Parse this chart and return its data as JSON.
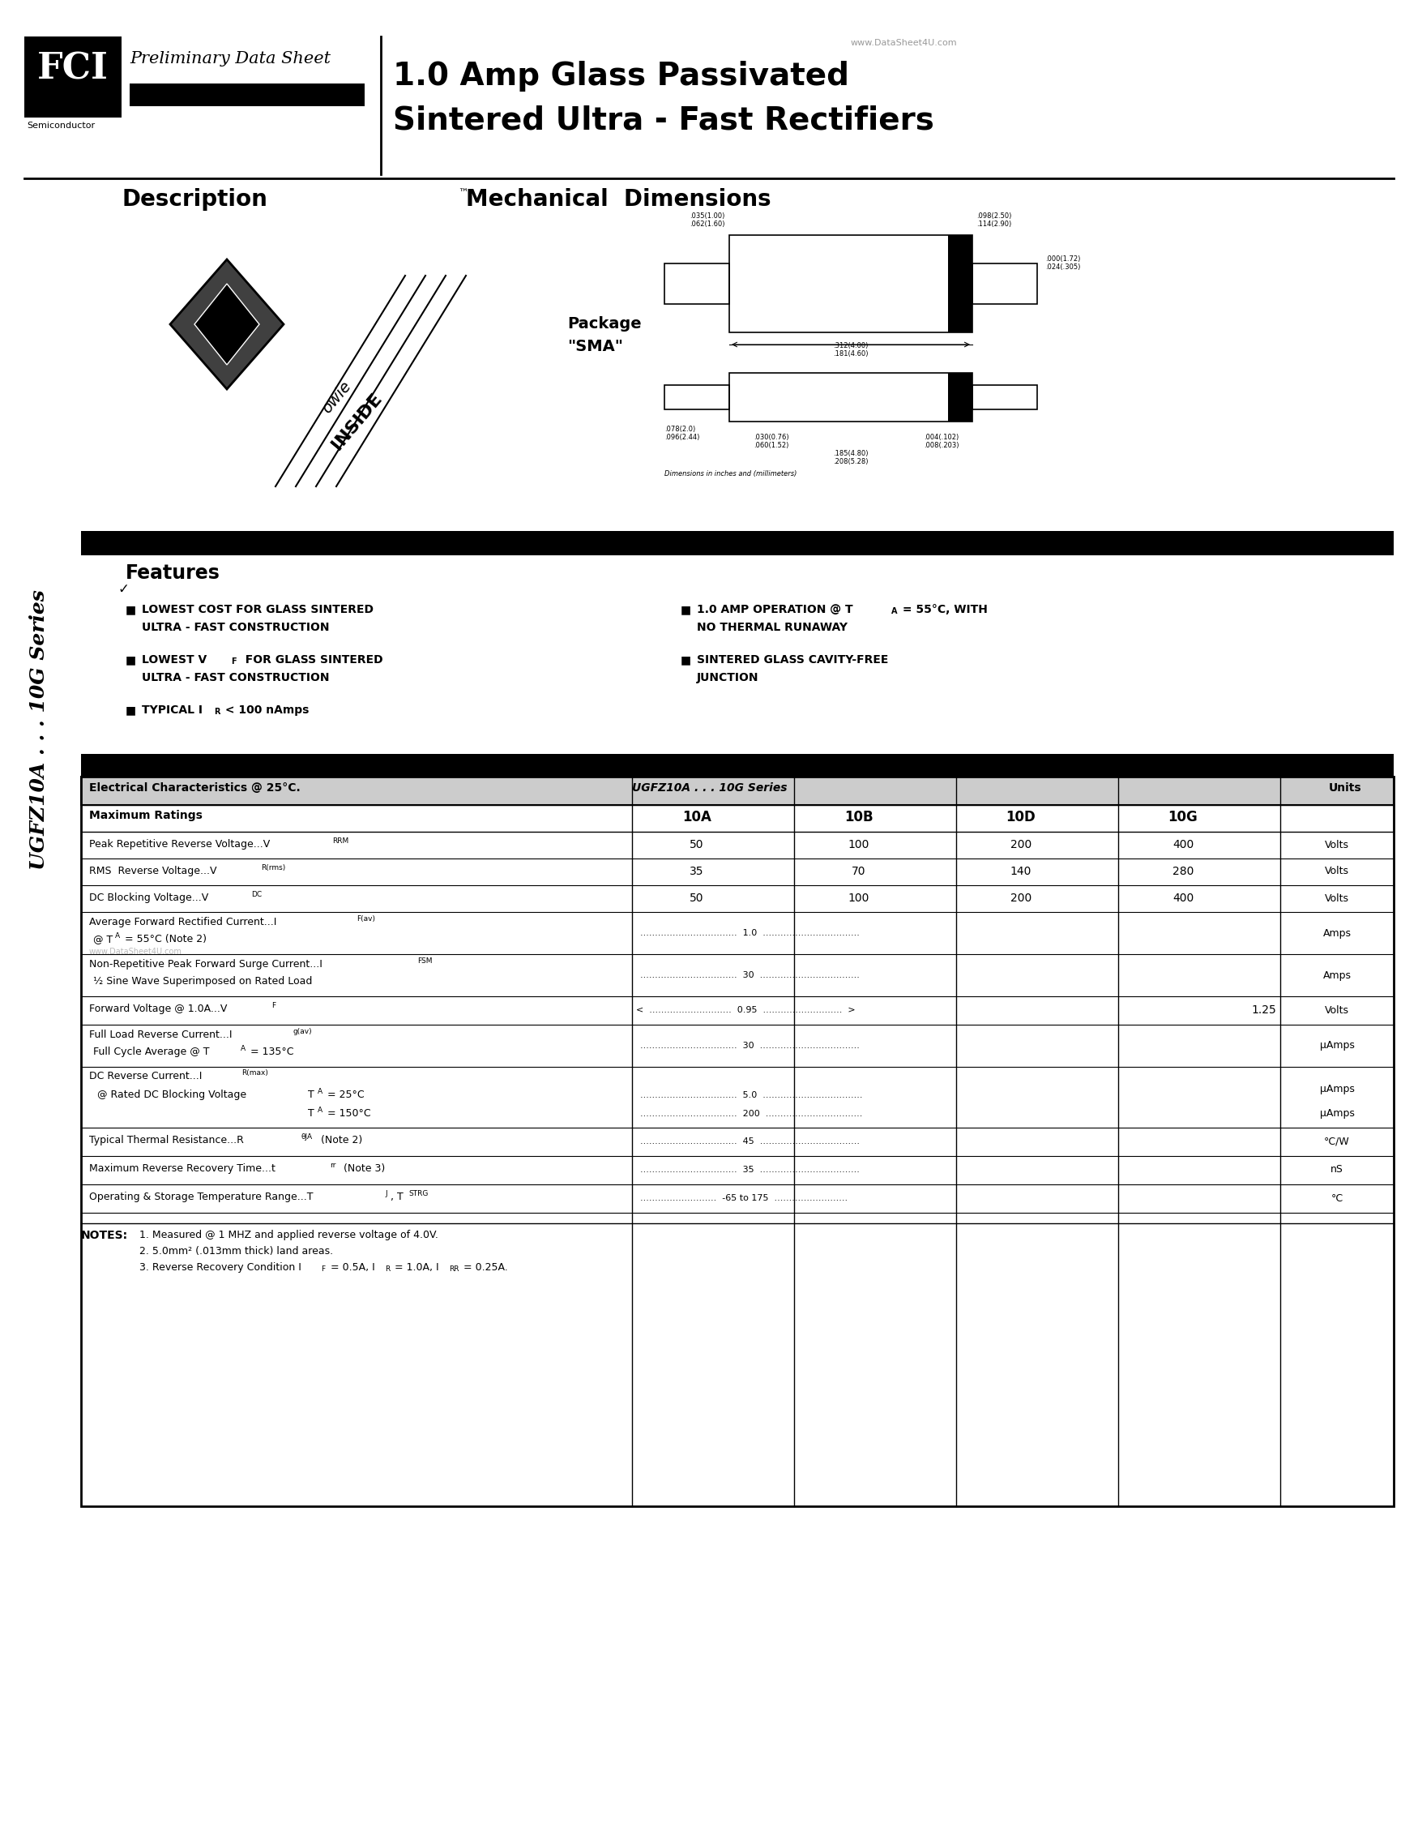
{
  "title_line1": "1.0 Amp Glass Passivated",
  "title_line2": "Sintered Ultra - Fast Rectifiers",
  "watermark": "www.DataSheet4U.com",
  "preliminary": "Preliminary Data Sheet",
  "semiconductor": "Semiconductor",
  "series_label": "UGFZ10A . . . 10G Series",
  "description_title": "Description",
  "mechanical_title": "Mechanical  Dimensions",
  "elec_char_title": "Electrical Characteristics @ 25°C.",
  "series_header": "UGFZ10A . . . 10G Series",
  "units_header": "Units",
  "max_ratings": "Maximum Ratings",
  "columns": [
    "10A",
    "10B",
    "10D",
    "10G"
  ],
  "bg_color": "#ffffff",
  "black": "#000000",
  "gray_wm": "#aaaaaa",
  "header_gray": "#cccccc"
}
